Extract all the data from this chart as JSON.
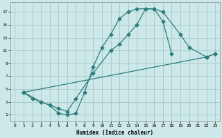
{
  "xlabel": "Humidex (Indice chaleur)",
  "bg_color": "#cce8e8",
  "grid_color": "#aacccc",
  "line_color": "#2d7d7d",
  "xlim": [
    -0.5,
    23.5
  ],
  "ylim": [
    0,
    18.5
  ],
  "xticks": [
    0,
    1,
    2,
    3,
    4,
    5,
    6,
    7,
    8,
    9,
    10,
    11,
    12,
    13,
    14,
    15,
    16,
    17,
    18,
    19,
    20,
    21,
    22,
    23
  ],
  "yticks": [
    1,
    3,
    5,
    7,
    9,
    11,
    13,
    15,
    17
  ],
  "line1_x": [
    1,
    2,
    3,
    4,
    5,
    6,
    7,
    8,
    9,
    10,
    11,
    12,
    13,
    14,
    15,
    16,
    17,
    18
  ],
  "line1_y": [
    4.5,
    3.5,
    3.0,
    2.5,
    1.2,
    1.0,
    1.2,
    4.5,
    8.5,
    11.5,
    13.5,
    16.0,
    17.0,
    17.5,
    17.5,
    17.5,
    15.5,
    10.5
  ],
  "line2_x": [
    1,
    3,
    5,
    6,
    7,
    9,
    11,
    12,
    13,
    14,
    15,
    16,
    17,
    19,
    20,
    22,
    23
  ],
  "line2_y": [
    4.5,
    3.0,
    2.0,
    1.5,
    3.5,
    7.5,
    11.0,
    12.0,
    13.5,
    15.0,
    17.5,
    17.5,
    17.0,
    13.5,
    11.5,
    10.0,
    10.5
  ],
  "line3_x": [
    1,
    22,
    23
  ],
  "line3_y": [
    4.5,
    10.0,
    10.5
  ]
}
